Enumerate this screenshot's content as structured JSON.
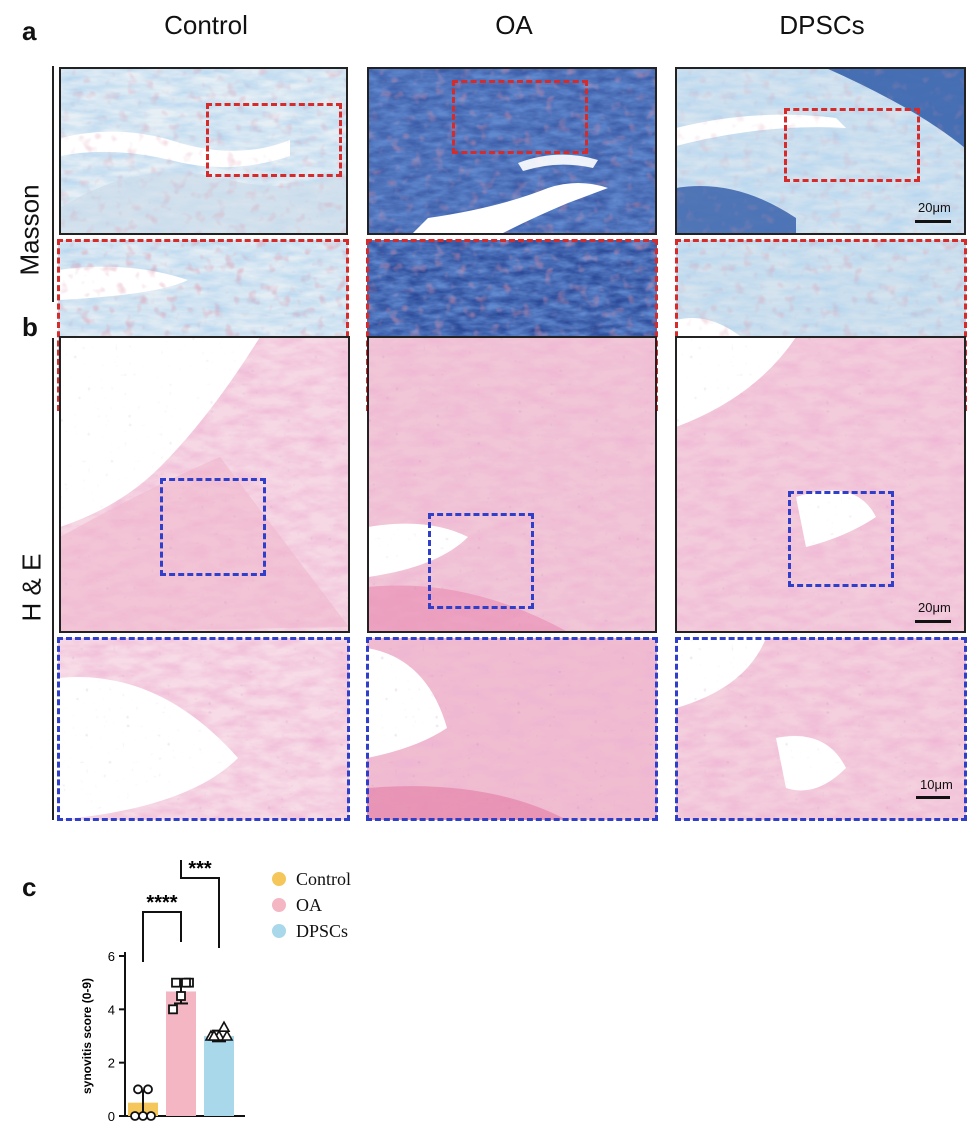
{
  "panels": {
    "a": "a",
    "b": "b",
    "c": "c"
  },
  "columns": [
    "Control",
    "OA",
    "DPSCs"
  ],
  "rows": {
    "masson": "Masson",
    "he": "H & E"
  },
  "scale": {
    "low": "20μm",
    "high": "10μm"
  },
  "colors": {
    "control": "#f5c75a",
    "oa": "#f4b6c3",
    "dpscs": "#a9d8ea",
    "roi_masson": "#d62b2b",
    "roi_he": "#2f3fc9"
  },
  "chart_data": {
    "type": "bar",
    "categories": [
      "Control",
      "OA",
      "DPSCs"
    ],
    "values": [
      0.5,
      4.67,
      3.0
    ],
    "error": [
      0.45,
      0.45,
      0.2
    ],
    "points": [
      [
        0,
        0,
        0,
        1,
        1
      ],
      [
        4,
        4.5,
        5,
        5,
        5
      ],
      [
        3,
        3,
        3,
        3,
        3.33
      ]
    ],
    "ylabel": "synovitis score (0-9)",
    "ylim": [
      0,
      6
    ],
    "yticks": [
      0,
      2,
      4,
      6
    ],
    "legend": [
      "Control",
      "OA",
      "DPSCs"
    ],
    "significance": [
      {
        "from": "Control",
        "to": "OA",
        "label": "****"
      },
      {
        "from": "OA",
        "to": "DPSCs",
        "label": "***"
      }
    ]
  }
}
